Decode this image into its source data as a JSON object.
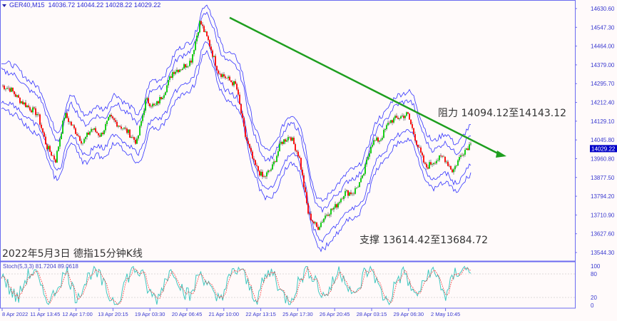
{
  "header": {
    "symbol": "GER40,M15",
    "open": "14036.72",
    "high": "14044.22",
    "low": "14028.22",
    "close": "14029.22"
  },
  "annotations": {
    "resistance": "阻力 14094.12至14143.12",
    "support": "支撑 13614.42至13684.72",
    "caption": "2022年5月3日 德指15分钟K线"
  },
  "colors": {
    "border": "#6b6bf0",
    "bands": "#3333ff",
    "bull": "#00cc00",
    "bear": "#ff0000",
    "trendline": "#1e9e1e",
    "stoch_main": "#40c8c0",
    "stoch_signal": "#ff3030",
    "price_tag": "#0000c8"
  },
  "chart_data": [
    {
      "type": "candlestick",
      "title": "GER40,M15",
      "ylim": [
        13544.3,
        14630.6
      ],
      "y_ticks": [
        "14630.60",
        "14547.30",
        "14464.00",
        "14379.00",
        "14295.70",
        "14212.40",
        "14129.10",
        "14045.80",
        "13960.80",
        "13877.50",
        "13794.20",
        "13710.90",
        "13627.60",
        "13544.30"
      ],
      "current_price": "14029.22",
      "x_tick_labels": [
        "8 Apr 2022",
        "11 Apr 13:45",
        "12 Apr 17:00",
        "13 Apr 20:15",
        "19 Apr 03:30",
        "20 Apr 06:45",
        "21 Apr 10:00",
        "22 Apr 13:15",
        "25 Apr 17:30",
        "26 Apr 20:45",
        "28 Apr 03:15",
        "29 Apr 06:30",
        "2 May 10:45"
      ],
      "approx_close_path": [
        14288,
        14272,
        14224,
        14192,
        14161,
        14018,
        13954,
        14161,
        14097,
        14034,
        14097,
        14065,
        14145,
        14113,
        14081,
        14034,
        14224,
        14192,
        14256,
        14351,
        14367,
        14399,
        14573,
        14478,
        14351,
        14319,
        14288,
        14065,
        13938,
        13875,
        13922,
        14034,
        14065,
        13970,
        13716,
        13652,
        13716,
        13748,
        13811,
        13811,
        13875,
        14034,
        14049,
        14129,
        14145,
        14161,
        14034,
        13922,
        13954,
        13970,
        13906,
        13986,
        14029.22
      ],
      "indicators": [
        "envelope bands (upper/lower)"
      ],
      "trendline": {
        "from": {
          "price": 14590,
          "at": "21 Apr 10:00"
        },
        "direction": "down",
        "arrow": true
      }
    },
    {
      "type": "line",
      "title": "Stoch(5,3,3) 81.7204 89.0618",
      "ylim": [
        0,
        100
      ],
      "y_ticks": [
        "100",
        "80",
        "20",
        "0"
      ],
      "levels": [
        80,
        20
      ],
      "main_approx": [
        85,
        40,
        15,
        70,
        90,
        30,
        10,
        60,
        85,
        20,
        50,
        90,
        70,
        25,
        5,
        60,
        95,
        80,
        30,
        15,
        75,
        90,
        40,
        20,
        85,
        60,
        10,
        35,
        80,
        95,
        50,
        15,
        70,
        88,
        30,
        10,
        55,
        92,
        75,
        20,
        45,
        90,
        60,
        15,
        80,
        95,
        35,
        5,
        65,
        85,
        25,
        40,
        90,
        70,
        20,
        80,
        95,
        81.72
      ],
      "main_name": "81.7204",
      "signal_name": "89.0618"
    }
  ]
}
